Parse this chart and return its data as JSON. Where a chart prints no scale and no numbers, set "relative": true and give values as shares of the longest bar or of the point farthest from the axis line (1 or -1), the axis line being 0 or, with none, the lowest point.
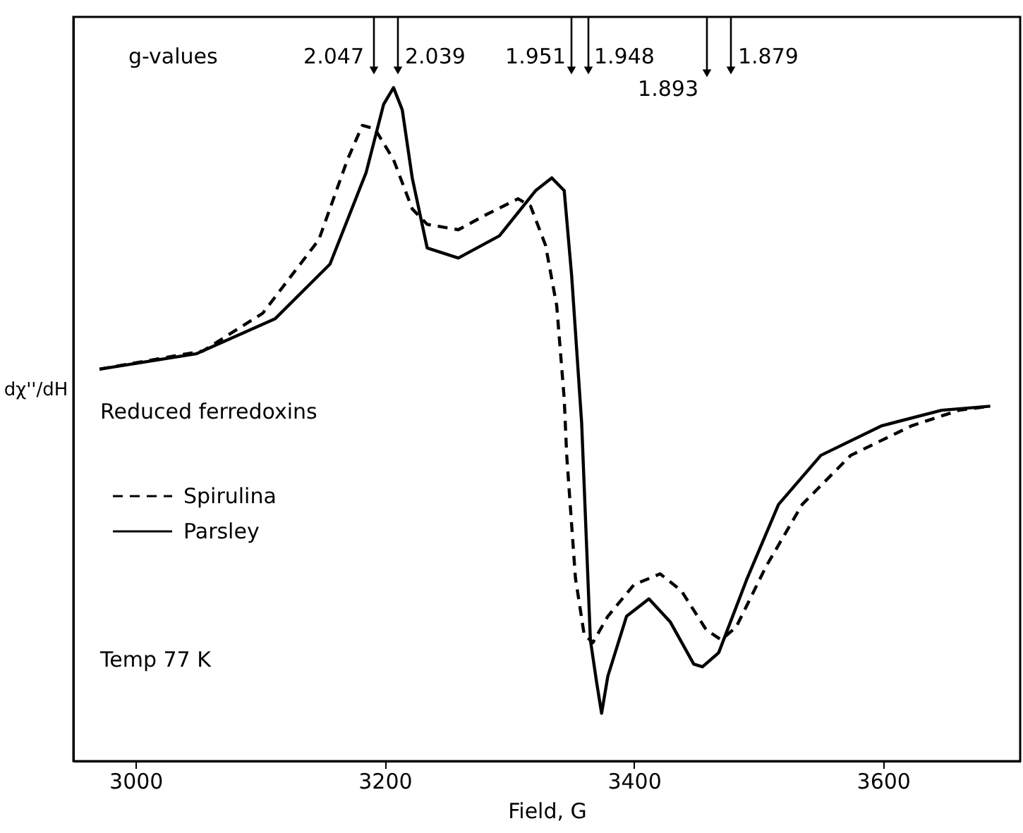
{
  "chart_data": {
    "type": "line",
    "xlabel": "Field, G",
    "ylabel": "dχ''/dH",
    "relative": true,
    "xlim": [
      2950,
      3710
    ],
    "xticks": [
      3000,
      3200,
      3400,
      3600
    ],
    "legend": "left",
    "grid": false,
    "annotations": [
      "g-values",
      "Reduced ferredoxins",
      "Temp 77 K",
      "2.047",
      "2.039",
      "1.951",
      "1.948",
      "1.893",
      "1.879"
    ],
    "series": [
      {
        "name": "Spirulina",
        "color": "#000000",
        "line_style": "dashed",
        "x": [
          2971,
          3054,
          3102,
          3147,
          3170,
          3182,
          3192,
          3207,
          3222,
          3234,
          3259,
          3282,
          3307,
          3317,
          3329,
          3338,
          3344,
          3346,
          3353,
          3360,
          3367,
          3379,
          3400,
          3421,
          3438,
          3458,
          3470,
          3482,
          3506,
          3535,
          3574,
          3623,
          3661,
          3686
        ],
        "values": [
          0.582,
          0.609,
          0.665,
          0.774,
          0.893,
          0.944,
          0.939,
          0.893,
          0.82,
          0.797,
          0.789,
          0.812,
          0.835,
          0.824,
          0.766,
          0.676,
          0.538,
          0.454,
          0.272,
          0.188,
          0.176,
          0.215,
          0.262,
          0.278,
          0.253,
          0.195,
          0.18,
          0.199,
          0.289,
          0.381,
          0.454,
          0.498,
          0.521,
          0.527
        ]
      },
      {
        "name": "Parsley",
        "color": "#000000",
        "line_style": "solid",
        "x": [
          2971,
          3049,
          3112,
          3156,
          3185,
          3199,
          3207,
          3214,
          3222,
          3234,
          3259,
          3292,
          3321,
          3334,
          3344,
          3350,
          3358,
          3365,
          3370,
          3374,
          3379,
          3394,
          3412,
          3429,
          3448,
          3455,
          3468,
          3491,
          3516,
          3550,
          3599,
          3647,
          3686
        ],
        "values": [
          0.582,
          0.605,
          0.657,
          0.738,
          0.874,
          0.975,
          1,
          0.967,
          0.866,
          0.762,
          0.747,
          0.78,
          0.847,
          0.866,
          0.847,
          0.72,
          0.502,
          0.18,
          0.117,
          0.071,
          0.126,
          0.215,
          0.241,
          0.207,
          0.144,
          0.14,
          0.161,
          0.272,
          0.381,
          0.454,
          0.498,
          0.521,
          0.527
        ]
      }
    ]
  }
}
